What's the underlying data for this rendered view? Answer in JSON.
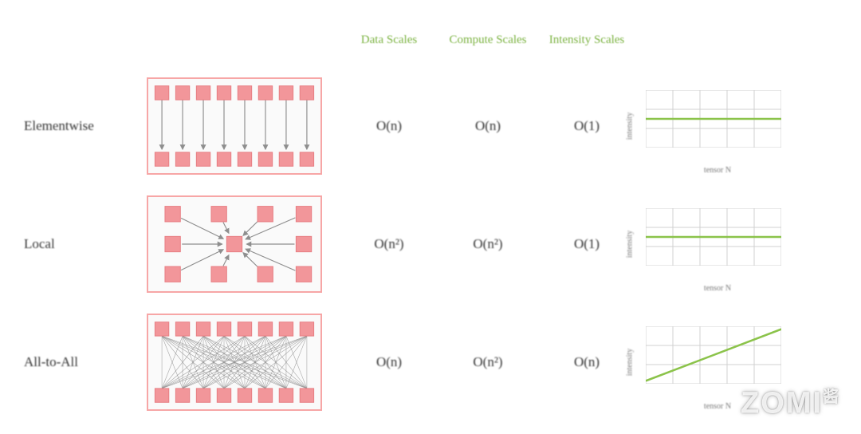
{
  "headers": {
    "data": "Data\nScales",
    "compute": "Compute\nScales",
    "intensity": "Intensity\nScales"
  },
  "rows": [
    {
      "label": "Elementwise",
      "data": "O(n)",
      "compute": "O(n)",
      "intensity": "O(1)",
      "spark_xlabel": "tensor N",
      "spark_ylabel": "intensity",
      "spark_points": [
        [
          0,
          0.5
        ],
        [
          1,
          0.5
        ]
      ]
    },
    {
      "label": "Local",
      "data": "O(n²)",
      "compute": "O(n²)",
      "intensity": "O(1)",
      "spark_xlabel": "tensor N",
      "spark_ylabel": "intensity",
      "spark_points": [
        [
          0,
          0.5
        ],
        [
          1,
          0.5
        ]
      ]
    },
    {
      "label": "All-to-All",
      "data": "O(n)",
      "compute": "O(n²)",
      "intensity": "O(n)",
      "spark_xlabel": "tensor N",
      "spark_ylabel": "intensity",
      "spark_points": [
        [
          0,
          0.05
        ],
        [
          1,
          0.95
        ]
      ]
    }
  ],
  "style": {
    "node_fill": "#f2969a",
    "node_stroke": "#e77d82",
    "arrow_color": "#8e8e8e",
    "grid_color": "#d0d0d0",
    "line_color": "#8bc34a",
    "spark_w": 170,
    "spark_h": 72,
    "spark_cols": 5,
    "spark_rows": 3
  },
  "watermark": {
    "main": "ZOMI",
    "suffix": "酱"
  }
}
